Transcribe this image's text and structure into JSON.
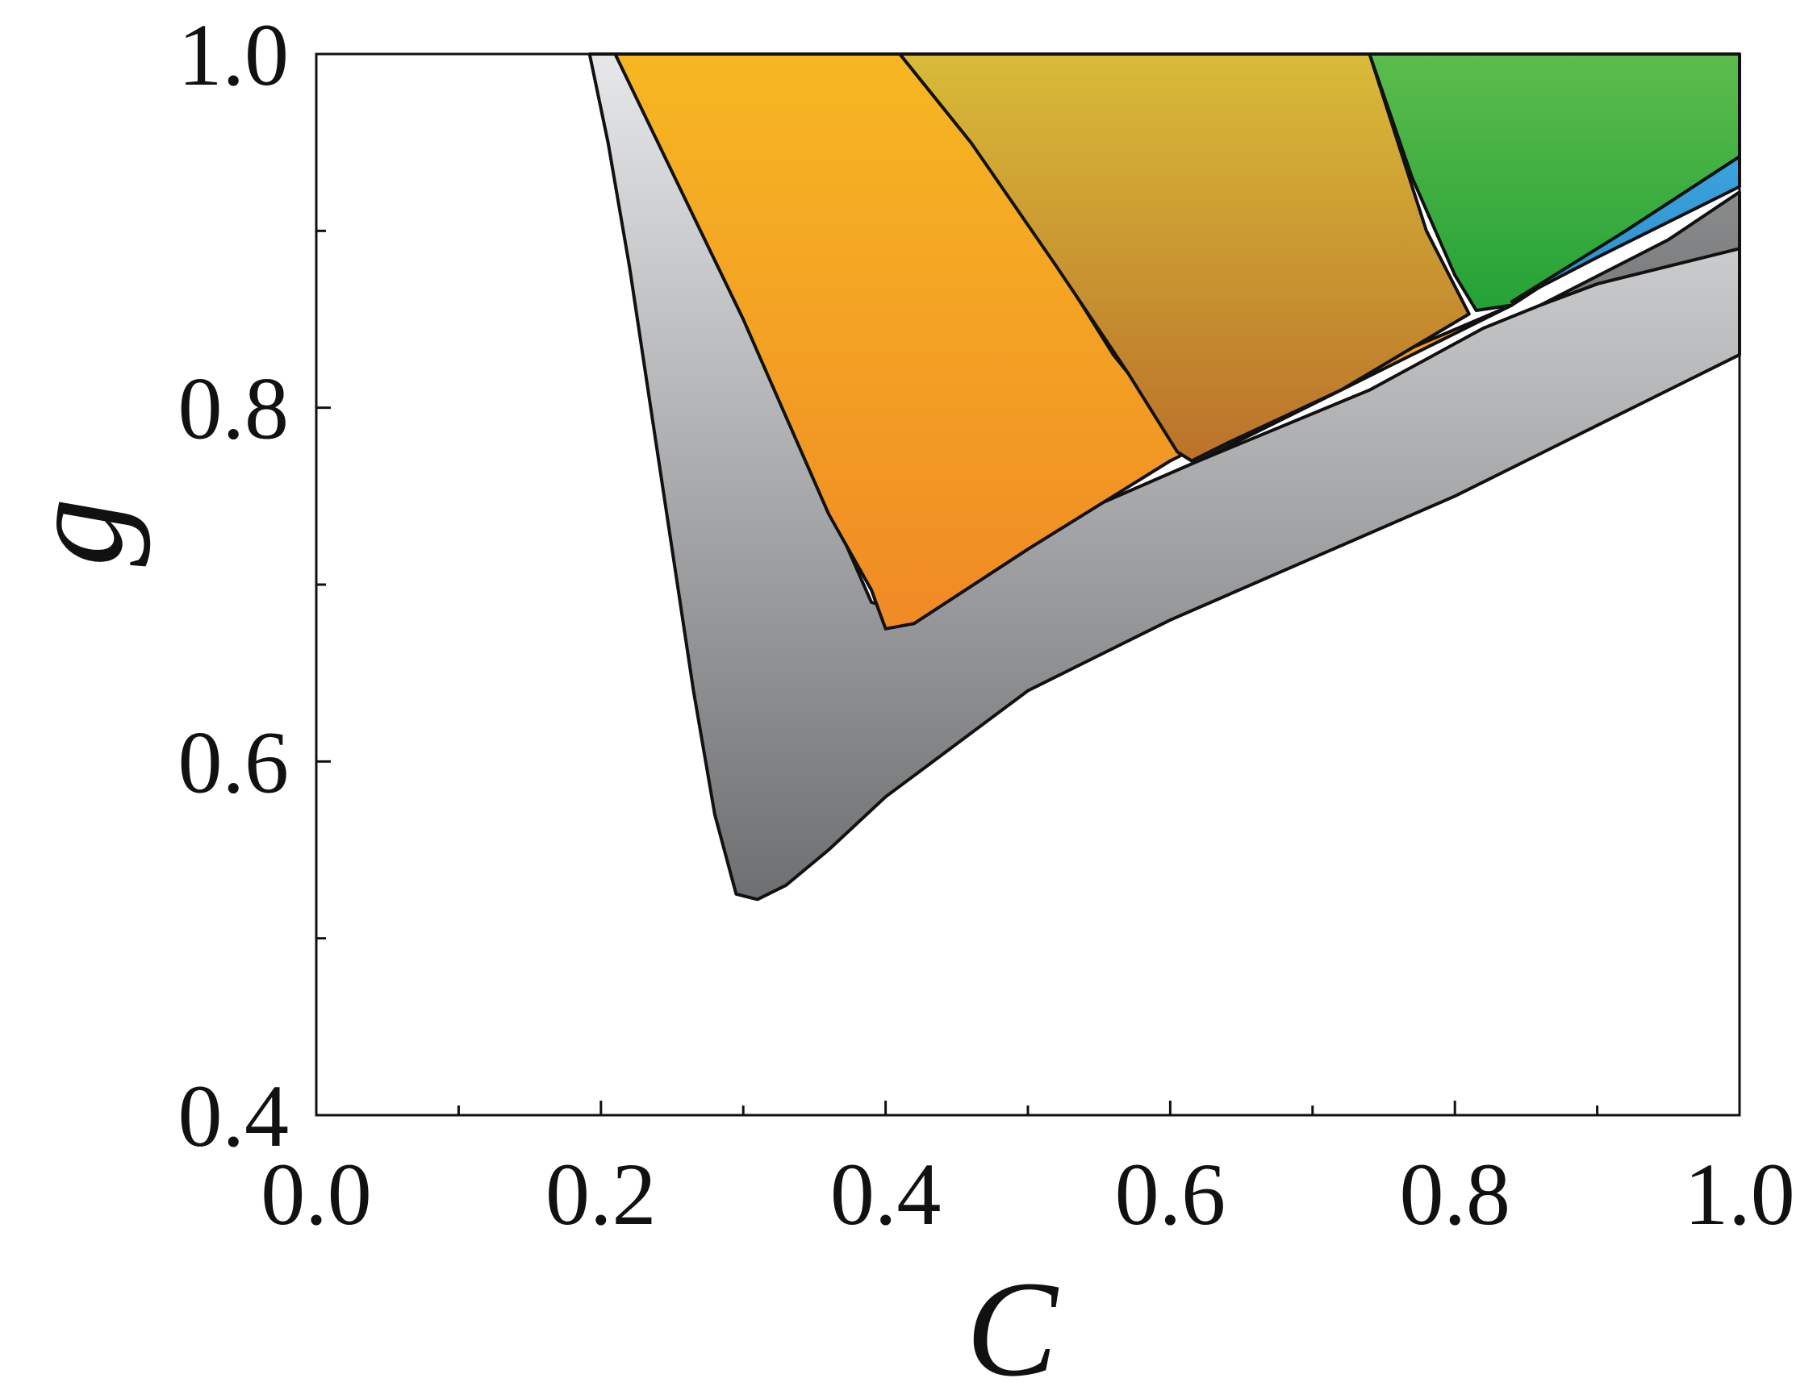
{
  "chart_data": {
    "type": "area",
    "xlabel": "C",
    "ylabel": "g",
    "xlim": [
      0.0,
      1.0
    ],
    "ylim": [
      0.4,
      1.0
    ],
    "x_ticks": [
      "0.0",
      "0.2",
      "0.4",
      "0.6",
      "0.8",
      "1.0"
    ],
    "y_ticks": [
      "0.4",
      "0.6",
      "0.8",
      "1.0"
    ],
    "grid": false,
    "legend": "none",
    "regions": [
      {
        "id": "gray",
        "color_top": "#e6e7e9",
        "color_bottom": "#6e6f70",
        "points": [
          [
            0.192,
            1.0
          ],
          [
            0.205,
            0.95
          ],
          [
            0.22,
            0.88
          ],
          [
            0.235,
            0.8
          ],
          [
            0.25,
            0.72
          ],
          [
            0.265,
            0.64
          ],
          [
            0.28,
            0.57
          ],
          [
            0.295,
            0.525
          ],
          [
            0.31,
            0.522
          ],
          [
            0.33,
            0.53
          ],
          [
            0.36,
            0.55
          ],
          [
            0.4,
            0.58
          ],
          [
            0.5,
            0.64
          ],
          [
            0.6,
            0.68
          ],
          [
            0.7,
            0.715
          ],
          [
            0.8,
            0.75
          ],
          [
            0.9,
            0.79
          ],
          [
            1.0,
            0.83
          ],
          [
            1.0,
            0.915
          ],
          [
            0.95,
            0.89
          ],
          [
            0.9,
            0.87
          ],
          [
            0.86,
            0.858
          ],
          [
            0.82,
            0.845
          ],
          [
            0.74,
            0.81
          ],
          [
            0.62,
            0.77
          ],
          [
            0.5,
            0.728
          ],
          [
            0.45,
            0.71
          ],
          [
            0.41,
            0.685
          ],
          [
            0.39,
            0.69
          ],
          [
            0.33,
            0.8
          ],
          [
            0.28,
            0.9
          ],
          [
            0.245,
            1.0
          ]
        ]
      },
      {
        "id": "orange",
        "color_top": "#f6b722",
        "color_bottom": "#f08a25",
        "points": [
          [
            0.21,
            1.0
          ],
          [
            0.3,
            0.85
          ],
          [
            0.36,
            0.74
          ],
          [
            0.39,
            0.697
          ],
          [
            0.4,
            0.675
          ],
          [
            0.42,
            0.678
          ],
          [
            0.5,
            0.72
          ],
          [
            0.6,
            0.77
          ],
          [
            0.7,
            0.81
          ],
          [
            0.84,
            0.858
          ],
          [
            0.62,
            0.77
          ],
          [
            0.56,
            0.83
          ],
          [
            0.49,
            0.92
          ],
          [
            0.41,
            1.0
          ]
        ]
      },
      {
        "id": "ochre",
        "color_top": "#d8bb38",
        "color_bottom": "#bb722a",
        "points": [
          [
            0.41,
            1.0
          ],
          [
            0.46,
            0.95
          ],
          [
            0.52,
            0.88
          ],
          [
            0.57,
            0.82
          ],
          [
            0.605,
            0.775
          ],
          [
            0.615,
            0.77
          ],
          [
            0.64,
            0.78
          ],
          [
            0.72,
            0.81
          ],
          [
            0.81,
            0.853
          ],
          [
            0.78,
            0.9
          ],
          [
            0.76,
            0.95
          ],
          [
            0.74,
            1.0
          ]
        ]
      },
      {
        "id": "green",
        "color_top": "#5cbc4c",
        "color_bottom": "#24a237",
        "points": [
          [
            0.74,
            1.0
          ],
          [
            0.77,
            0.93
          ],
          [
            0.8,
            0.875
          ],
          [
            0.815,
            0.855
          ],
          [
            0.84,
            0.858
          ],
          [
            0.92,
            0.9
          ],
          [
            1.0,
            0.942
          ],
          [
            1.0,
            1.0
          ]
        ]
      },
      {
        "id": "blue",
        "color_top": "#3ba3dd",
        "color_bottom": "#2f8fcf",
        "points": [
          [
            0.84,
            0.86
          ],
          [
            0.92,
            0.9
          ],
          [
            1.0,
            0.942
          ],
          [
            1.0,
            0.925
          ],
          [
            0.9,
            0.885
          ]
        ]
      },
      {
        "id": "darkgray",
        "color_top": "#8a8b8c",
        "color_bottom": "#7a7b7c",
        "points": [
          [
            0.86,
            0.858
          ],
          [
            0.95,
            0.895
          ],
          [
            1.0,
            0.922
          ],
          [
            1.0,
            0.89
          ],
          [
            0.9,
            0.87
          ]
        ]
      }
    ]
  }
}
